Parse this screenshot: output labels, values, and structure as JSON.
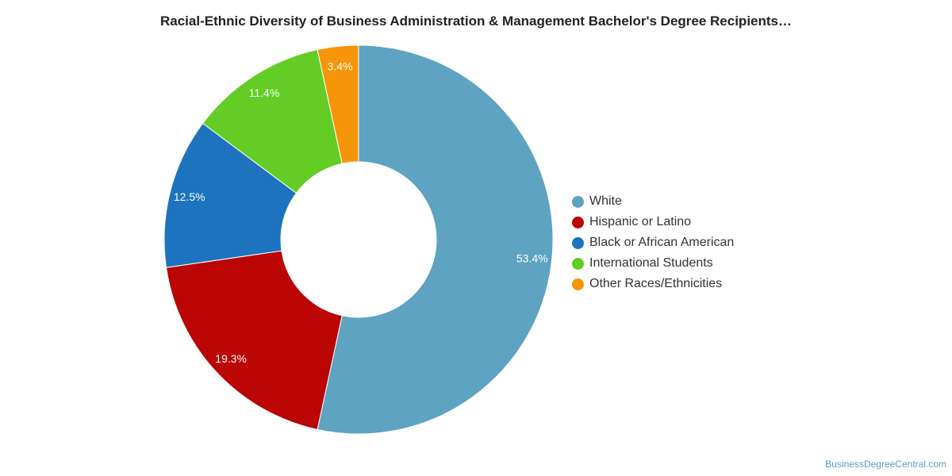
{
  "chart_data": {
    "type": "pie",
    "donut": true,
    "title": "Racial-Ethnic Diversity of Business Administration & Management Bachelor's Degree Recipients…",
    "unit": "%",
    "slices": [
      {
        "label": "White",
        "value": 53.4,
        "value_label": "53.4%",
        "color": "#5ea3c1"
      },
      {
        "label": "Hispanic or Latino",
        "value": 19.3,
        "value_label": "19.3%",
        "color": "#bb0505"
      },
      {
        "label": "Black or African American",
        "value": 12.5,
        "value_label": "12.5%",
        "color": "#1e73be"
      },
      {
        "label": "International Students",
        "value": 11.4,
        "value_label": "11.4%",
        "color": "#63cd26"
      },
      {
        "label": "Other Races/Ethnicities",
        "value": 3.4,
        "value_label": "3.4%",
        "color": "#f7950a"
      }
    ],
    "legend_position": "right",
    "start": "top",
    "direction": "clockwise"
  },
  "source": "BusinessDegreeCentral.com"
}
